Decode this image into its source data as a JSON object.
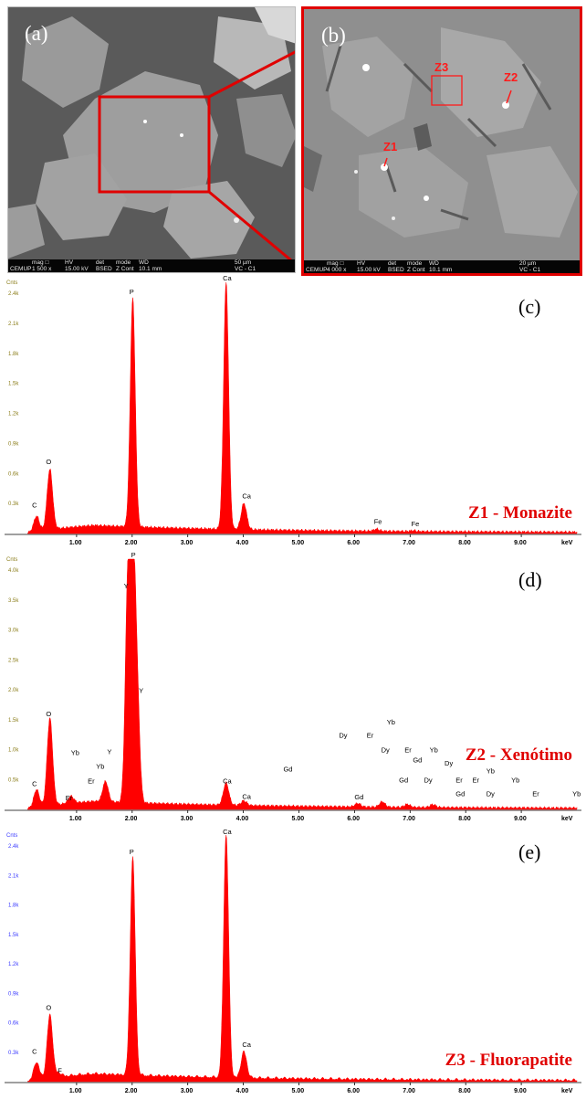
{
  "figure": {
    "sem_a": {
      "letter": "(a)",
      "info_headers": [
        "mag □",
        "HV",
        "det",
        "mode",
        "WD",
        "50 µm"
      ],
      "info_values": [
        "1 500 x",
        "15.00 kV",
        "BSED",
        "Z Cont",
        "10.1 mm",
        "VC - C1"
      ],
      "logo_text": "CEMUP"
    },
    "sem_b": {
      "letter": "(b)",
      "info_headers": [
        "mag □",
        "HV",
        "det",
        "mode",
        "WD",
        "20 µm"
      ],
      "info_values": [
        "4 000 x",
        "15.00 kV",
        "BSED",
        "Z Cont",
        "10.1 mm",
        "VC - C1"
      ],
      "logo_text": "CEMUP",
      "zones": [
        "Z1",
        "Z2",
        "Z3"
      ]
    },
    "colors": {
      "spectrum": "#ff0000",
      "zoom_box": "#e00000",
      "mineral_label": "#e00000",
      "ytick_c": "#8b7d1a",
      "ytick_e": "#3a3aff"
    }
  },
  "chart_data": [
    {
      "type": "area",
      "panel": "(c)",
      "mineral": "Z1 - Monazite",
      "y_axis_title": "Cnts",
      "x_unit": "keV",
      "x_ticks": [
        "1.00",
        "2.00",
        "3.00",
        "4.00",
        "5.00",
        "6.00",
        "7.00",
        "8.00",
        "9.00"
      ],
      "xlim": [
        0.0,
        10.0
      ],
      "y_ticks": [
        "2.4k",
        "2.1k",
        "1.8k",
        "1.5k",
        "1.2k",
        "0.9k",
        "0.6k",
        "0.3k"
      ],
      "ylim": [
        0,
        2500
      ],
      "peaks": [
        {
          "element": "C",
          "energy": 0.28,
          "counts": 150
        },
        {
          "element": "O",
          "energy": 0.52,
          "counts": 600
        },
        {
          "element": "P",
          "energy": 2.01,
          "counts": 2280
        },
        {
          "element": "Ca",
          "energy": 3.69,
          "counts": 2460
        },
        {
          "element": "Ca",
          "energy": 4.01,
          "counts": 260
        },
        {
          "element": "Fe",
          "energy": 6.4,
          "counts": 20
        },
        {
          "element": "Fe",
          "energy": 7.06,
          "counts": 8
        }
      ],
      "labels": [
        {
          "text": "C",
          "energy": 0.2,
          "counts": 260
        },
        {
          "text": "O",
          "energy": 0.45,
          "counts": 690
        },
        {
          "text": "P",
          "energy": 1.95,
          "counts": 2380
        },
        {
          "text": "Ca",
          "energy": 3.63,
          "counts": 2520
        },
        {
          "text": "Ca",
          "energy": 3.98,
          "counts": 350
        },
        {
          "text": "Fe",
          "energy": 6.35,
          "counts": 95
        },
        {
          "text": "Fe",
          "energy": 7.02,
          "counts": 75
        }
      ]
    },
    {
      "type": "area",
      "panel": "(d)",
      "mineral": "Z2 - Xenótimo",
      "y_axis_title": "Cnts",
      "x_unit": "keV",
      "x_ticks": [
        "1.00",
        "2.00",
        "3.00",
        "4.00",
        "5.00",
        "6.00",
        "7.00",
        "8.00",
        "9.00"
      ],
      "xlim": [
        0.0,
        10.0
      ],
      "y_ticks": [
        "4.0k",
        "3.5k",
        "3.0k",
        "2.5k",
        "2.0k",
        "1.5k",
        "1.0k",
        "0.5k"
      ],
      "ylim": [
        0,
        4300
      ],
      "peaks": [
        {
          "element": "C",
          "energy": 0.28,
          "counts": 300
        },
        {
          "element": "O",
          "energy": 0.52,
          "counts": 1500
        },
        {
          "element": "Er",
          "energy": 0.9,
          "counts": 120
        },
        {
          "element": "Yb",
          "energy": 1.52,
          "counts": 350
        },
        {
          "element": "Y",
          "energy": 1.92,
          "counts": 3600
        },
        {
          "element": "P",
          "energy": 2.01,
          "counts": 4200
        },
        {
          "element": "Y",
          "energy": 2.09,
          "counts": 1800
        },
        {
          "element": "Ca",
          "energy": 3.69,
          "counts": 380
        },
        {
          "element": "Ca",
          "energy": 4.01,
          "counts": 80
        },
        {
          "element": "Gd",
          "energy": 6.06,
          "counts": 60
        },
        {
          "element": "Dy",
          "energy": 6.5,
          "counts": 90
        },
        {
          "element": "Yb",
          "energy": 7.41,
          "counts": 50
        },
        {
          "element": "Er",
          "energy": 6.95,
          "counts": 50
        }
      ],
      "labels": [
        {
          "text": "C",
          "energy": 0.2,
          "counts": 400
        },
        {
          "text": "O",
          "energy": 0.45,
          "counts": 1600
        },
        {
          "text": "Er",
          "energy": 0.8,
          "counts": 160
        },
        {
          "text": "Yb",
          "energy": 0.9,
          "counts": 930
        },
        {
          "text": "Er",
          "energy": 1.2,
          "counts": 450
        },
        {
          "text": "Yb",
          "energy": 1.35,
          "counts": 700
        },
        {
          "text": "Y",
          "energy": 1.55,
          "counts": 950
        },
        {
          "text": "Y",
          "energy": 1.85,
          "counts": 3800
        },
        {
          "text": "P",
          "energy": 1.98,
          "counts": 4330
        },
        {
          "text": "Y",
          "energy": 2.12,
          "counts": 2000
        },
        {
          "text": "Ca",
          "energy": 3.63,
          "counts": 450
        },
        {
          "text": "Ca",
          "energy": 3.98,
          "counts": 180
        },
        {
          "text": "Gd",
          "energy": 4.72,
          "counts": 650
        },
        {
          "text": "Dy",
          "energy": 5.72,
          "counts": 1230
        },
        {
          "text": "Gd",
          "energy": 6.0,
          "counts": 170
        },
        {
          "text": "Er",
          "energy": 6.22,
          "counts": 1230
        },
        {
          "text": "Dy",
          "energy": 6.48,
          "counts": 980
        },
        {
          "text": "Yb",
          "energy": 6.58,
          "counts": 1460
        },
        {
          "text": "Gd",
          "energy": 6.8,
          "counts": 460
        },
        {
          "text": "Er",
          "energy": 6.9,
          "counts": 980
        },
        {
          "text": "Gd",
          "energy": 7.05,
          "counts": 810
        },
        {
          "text": "Dy",
          "energy": 7.25,
          "counts": 460
        },
        {
          "text": "Yb",
          "energy": 7.35,
          "counts": 980
        },
        {
          "text": "Dy",
          "energy": 7.62,
          "counts": 750
        },
        {
          "text": "Er",
          "energy": 7.82,
          "counts": 460
        },
        {
          "text": "Gd",
          "energy": 7.82,
          "counts": 230
        },
        {
          "text": "Er",
          "energy": 8.12,
          "counts": 460
        },
        {
          "text": "Yb",
          "energy": 8.37,
          "counts": 620
        },
        {
          "text": "Dy",
          "energy": 8.37,
          "counts": 230
        },
        {
          "text": "Yb",
          "energy": 8.82,
          "counts": 460
        },
        {
          "text": "Er",
          "energy": 9.2,
          "counts": 230
        },
        {
          "text": "Yb",
          "energy": 9.92,
          "counts": 230
        }
      ]
    },
    {
      "type": "area",
      "panel": "(e)",
      "mineral": "Z3 - Fluorapatite",
      "y_axis_title": "Cnts",
      "x_unit": "keV",
      "x_ticks": [
        "1.00",
        "2.00",
        "3.00",
        "4.00",
        "5.00",
        "6.00",
        "7.00",
        "8.00",
        "9.00"
      ],
      "xlim": [
        0.0,
        10.0
      ],
      "y_ticks": [
        "2.4k",
        "2.1k",
        "1.8k",
        "1.5k",
        "1.2k",
        "0.9k",
        "0.6k",
        "0.3k"
      ],
      "ylim": [
        0,
        2550
      ],
      "peaks": [
        {
          "element": "C",
          "energy": 0.28,
          "counts": 180
        },
        {
          "element": "F",
          "energy": 0.68,
          "counts": 40
        },
        {
          "element": "O",
          "energy": 0.52,
          "counts": 650
        },
        {
          "element": "P",
          "energy": 2.01,
          "counts": 2260
        },
        {
          "element": "Ca",
          "energy": 3.69,
          "counts": 2520
        },
        {
          "element": "Ca",
          "energy": 4.01,
          "counts": 270
        }
      ],
      "labels": [
        {
          "text": "C",
          "energy": 0.2,
          "counts": 290
        },
        {
          "text": "O",
          "energy": 0.45,
          "counts": 740
        },
        {
          "text": "F",
          "energy": 0.66,
          "counts": 90
        },
        {
          "text": "P",
          "energy": 1.95,
          "counts": 2350
        },
        {
          "text": "Ca",
          "energy": 3.63,
          "counts": 2560
        },
        {
          "text": "Ca",
          "energy": 3.98,
          "counts": 360
        }
      ]
    }
  ]
}
